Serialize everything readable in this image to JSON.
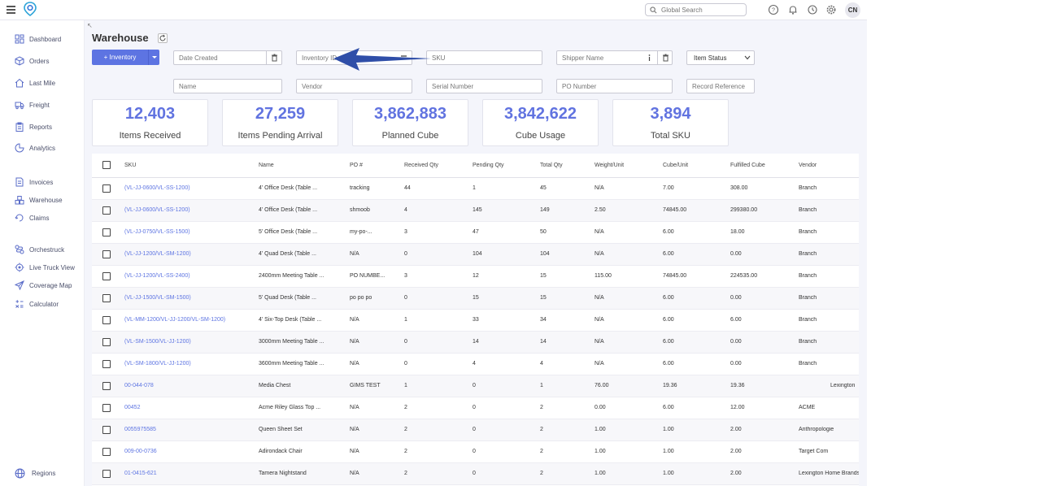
{
  "topbar": {
    "search_placeholder": "Global Search",
    "avatar_initials": "CN"
  },
  "sidebar": {
    "items": [
      {
        "label": "Dashboard",
        "icon": "dashboard-icon"
      },
      {
        "label": "Orders",
        "icon": "box-icon"
      },
      {
        "label": "Last Mile",
        "icon": "last-mile-icon"
      },
      {
        "label": "Freight",
        "icon": "truck-icon"
      },
      {
        "label": "Reports",
        "icon": "clipboard-icon"
      },
      {
        "label": "Analytics",
        "icon": "analytics-icon"
      },
      {
        "label": "Invoices",
        "icon": "invoice-icon"
      },
      {
        "label": "Warehouse",
        "icon": "warehouse-icon"
      },
      {
        "label": "Claims",
        "icon": "claims-icon"
      },
      {
        "label": "Orchestruck",
        "icon": "orchestruck-icon"
      },
      {
        "label": "Live Truck View",
        "icon": "target-icon"
      },
      {
        "label": "Coverage Map",
        "icon": "send-icon"
      },
      {
        "label": "Calculator",
        "icon": "calculator-icon"
      },
      {
        "label": "Regions",
        "icon": "globe-icon"
      }
    ]
  },
  "page": {
    "title": "Warehouse",
    "add_button": "+ Inventory"
  },
  "filters": {
    "date_created": "Date Created",
    "inventory_id": "Inventory ID",
    "sku": "SKU",
    "shipper_name": "Shipper Name",
    "item_status": "Item Status",
    "name": "Name",
    "vendor": "Vendor",
    "serial_number": "Serial Number",
    "po_number": "PO Number",
    "record_reference": "Record Reference"
  },
  "kpis": [
    {
      "value": "12,403",
      "label": "Items Received"
    },
    {
      "value": "27,259",
      "label": "Items Pending Arrival"
    },
    {
      "value": "3,862,883",
      "label": "Planned Cube"
    },
    {
      "value": "3,842,622",
      "label": "Cube Usage"
    },
    {
      "value": "3,894",
      "label": "Total SKU"
    }
  ],
  "table": {
    "headers": [
      "SKU",
      "Name",
      "PO #",
      "Received Qty",
      "Pending Qty",
      "Total Qty",
      "Weight/Unit",
      "Cube/Unit",
      "Fulfilled Cube",
      "Vendor"
    ],
    "rows": [
      [
        "(VL-JJ-0600/VL-SS-1200)",
        "4' Office Desk (Table ...",
        "tracking",
        "44",
        "1",
        "45",
        "N/A",
        "7.00",
        "308.00",
        "Branch"
      ],
      [
        "(VL-JJ-0600/VL-SS-1200)",
        "4' Office Desk (Table ...",
        "shmoob",
        "4",
        "145",
        "149",
        "2.50",
        "74845.00",
        "299380.00",
        "Branch"
      ],
      [
        "(VL-JJ-0750/VL-SS-1500)",
        "5' Office Desk (Table ...",
        "my-po-...",
        "3",
        "47",
        "50",
        "N/A",
        "6.00",
        "18.00",
        "Branch"
      ],
      [
        "(VL-JJ-1200/VL-SM-1200)",
        "4' Quad Desk (Table ...",
        "N/A",
        "0",
        "104",
        "104",
        "N/A",
        "6.00",
        "0.00",
        "Branch"
      ],
      [
        "(VL-JJ-1200/VL-SS-2400)",
        "2400mm Meeting Table ...",
        "PO NUMBE...",
        "3",
        "12",
        "15",
        "115.00",
        "74845.00",
        "224535.00",
        "Branch"
      ],
      [
        "(VL-JJ-1500/VL-SM-1500)",
        "5' Quad Desk (Table ...",
        "po po po",
        "0",
        "15",
        "15",
        "N/A",
        "6.00",
        "0.00",
        "Branch"
      ],
      [
        "(VL-MM-1200/VL-JJ-1200/VL-SM-1200)",
        "4' Six-Top Desk (Table ...",
        "N/A",
        "1",
        "33",
        "34",
        "N/A",
        "6.00",
        "6.00",
        "Branch"
      ],
      [
        "(VL-SM-1500/VL-JJ-1200)",
        "3000mm Meeting Table ...",
        "N/A",
        "0",
        "14",
        "14",
        "N/A",
        "6.00",
        "0.00",
        "Branch"
      ],
      [
        "(VL-SM-1800/VL-JJ-1200)",
        "3600mm Meeting Table ...",
        "N/A",
        "0",
        "4",
        "4",
        "N/A",
        "6.00",
        "0.00",
        "Branch"
      ],
      [
        "00-044-078",
        "Media Chest",
        "GIMS TEST",
        "1",
        "0",
        "1",
        "76.00",
        "19.36",
        "19.36",
        "Lexington"
      ],
      [
        "00452",
        "Acme Riley Glass Top ...",
        "N/A",
        "2",
        "0",
        "2",
        "0.00",
        "6.00",
        "12.00",
        "ACME"
      ],
      [
        "0055975585",
        "Queen Sheet Set",
        "N/A",
        "2",
        "0",
        "2",
        "1.00",
        "1.00",
        "2.00",
        "Anthropologie"
      ],
      [
        "009-00-0736",
        "Adirondack Chair",
        "N/A",
        "2",
        "0",
        "2",
        "1.00",
        "1.00",
        "2.00",
        "Target Com"
      ],
      [
        "01-0415-621",
        "Tamera Nightstand",
        "N/A",
        "2",
        "0",
        "2",
        "1.00",
        "1.00",
        "2.00",
        "Lexington Home Brands"
      ]
    ]
  },
  "colors": {
    "accent": "#5d74e2",
    "annotation_arrow": "#2f4ea8",
    "background": "#f4f5fb"
  }
}
